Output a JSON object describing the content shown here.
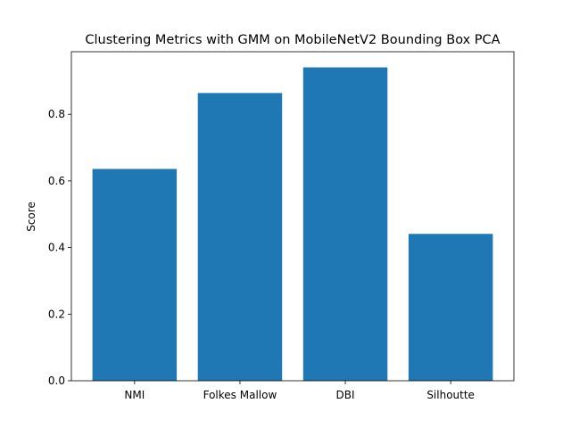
{
  "chart_data": {
    "type": "bar",
    "title": "Clustering Metrics with GMM on MobileNetV2 Bounding Box PCA",
    "xlabel": "",
    "ylabel": "Score",
    "categories": [
      "NMI",
      "Folkes Mallow",
      "DBI",
      "Silhoutte"
    ],
    "values": [
      0.636,
      0.864,
      0.941,
      0.441
    ],
    "ylim": [
      0,
      0.988
    ],
    "yticks": [
      0.0,
      0.2,
      0.4,
      0.6,
      0.8
    ],
    "ytick_labels": [
      "0.0",
      "0.2",
      "0.4",
      "0.6",
      "0.8"
    ],
    "bar_color": "#1f77b4",
    "grid": false,
    "legend": "none"
  }
}
